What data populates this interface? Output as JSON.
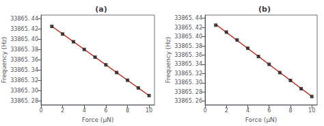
{
  "chart_data": [
    {
      "type": "scatter",
      "title": "(a)",
      "xlabel": "Force (μN)",
      "ylabel": "Frequency (Hz)",
      "xlim": [
        0,
        10.5
      ],
      "ylim": [
        33865.272,
        33865.447
      ],
      "xticks": [
        0,
        2,
        4,
        6,
        8,
        10
      ],
      "yticks": [
        {
          "value": 33865.28,
          "label": "33865. 28"
        },
        {
          "value": 33865.3,
          "label": "33865. 30"
        },
        {
          "value": 33865.32,
          "label": "33865. 32"
        },
        {
          "value": 33865.34,
          "label": "33865. 34"
        },
        {
          "value": 33865.36,
          "label": "33865. 36"
        },
        {
          "value": 33865.38,
          "label": "33865. 38"
        },
        {
          "value": 33865.4,
          "label": "33865. 40"
        },
        {
          "value": 33865.42,
          "label": "33865. 42"
        },
        {
          "value": 33865.44,
          "label": "33865. 44"
        }
      ],
      "grid": false,
      "series": [
        {
          "type": "line",
          "color": "#c0392b",
          "line_style": "solid",
          "x": [
            1,
            10
          ],
          "values": [
            33865.425,
            33865.29
          ]
        },
        {
          "type": "scatter",
          "color": "#1a1a1a",
          "marker": "square",
          "x": [
            1,
            2,
            3,
            4,
            5,
            6,
            7,
            8,
            9,
            10
          ],
          "values": [
            33865.425,
            33865.41,
            33865.395,
            33865.38,
            33865.365,
            33865.35,
            33865.335,
            33865.32,
            33865.305,
            33865.29
          ]
        }
      ]
    },
    {
      "type": "scatter",
      "title": "(b)",
      "xlabel": "Force (μN)",
      "ylabel": "Frequency (Hz)",
      "xlim": [
        0,
        10.5
      ],
      "ylim": [
        33865.252,
        33865.447
      ],
      "xticks": [
        0,
        2,
        4,
        6,
        8,
        10
      ],
      "yticks": [
        {
          "value": 33865.26,
          "label": "33865. 26"
        },
        {
          "value": 33865.28,
          "label": "33865. 28"
        },
        {
          "value": 33865.3,
          "label": "33865. 30"
        },
        {
          "value": 33865.32,
          "label": "33865. 32"
        },
        {
          "value": 33865.34,
          "label": "33865. 34"
        },
        {
          "value": 33865.36,
          "label": "33865. 36"
        },
        {
          "value": 33865.38,
          "label": "33865. 38"
        },
        {
          "value": 33865.4,
          "label": "33865. 40"
        },
        {
          "value": 33865.42,
          "label": "33865. 42"
        },
        {
          "value": 33865.44,
          "label": "33865. 44"
        }
      ],
      "grid": false,
      "series": [
        {
          "type": "line",
          "color": "#c0392b",
          "line_style": "solid",
          "x": [
            1,
            10
          ],
          "values": [
            33865.4267273,
            33865.2700727
          ]
        },
        {
          "type": "scatter",
          "color": "#1a1a1a",
          "marker": "square",
          "x": [
            1,
            2,
            3,
            4,
            5,
            6,
            7,
            8,
            9,
            10
          ],
          "values": [
            33865.425,
            33865.41,
            33865.393,
            33865.375,
            33865.357,
            33865.34,
            33865.322,
            33865.305,
            33865.287,
            33865.27
          ]
        }
      ]
    }
  ]
}
